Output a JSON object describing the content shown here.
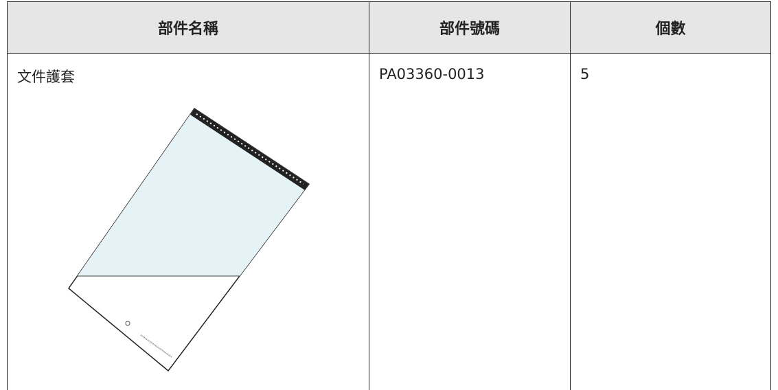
{
  "table": {
    "header": [
      "部件名稱",
      "部件號碼",
      "個數"
    ],
    "rows": [
      [
        "文件護套",
        "PA03360-0013",
        "5"
      ]
    ]
  }
}
